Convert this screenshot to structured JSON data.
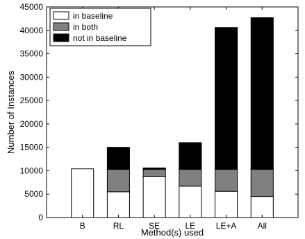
{
  "chart_data": {
    "type": "bar",
    "stacked": true,
    "categories": [
      "B",
      "RL",
      "SE",
      "LE",
      "LE+A",
      "All"
    ],
    "series": [
      {
        "name": "in baseline",
        "color": "#ffffff",
        "values": [
          10400,
          5500,
          8800,
          6700,
          5600,
          4500
        ]
      },
      {
        "name": "in both",
        "color": "#808080",
        "values": [
          0,
          4800,
          1500,
          3600,
          4700,
          5800
        ]
      },
      {
        "name": "not in baseline",
        "color": "#000000",
        "values": [
          0,
          4700,
          300,
          5700,
          30300,
          32400
        ]
      }
    ],
    "xlabel": "Method(s) used",
    "ylabel": "Number of Instances",
    "ylim": [
      0,
      45000
    ],
    "yticks": [
      0,
      5000,
      10000,
      15000,
      20000,
      25000,
      30000,
      35000,
      40000,
      45000
    ],
    "grid": false,
    "legend_position": "top-left"
  }
}
